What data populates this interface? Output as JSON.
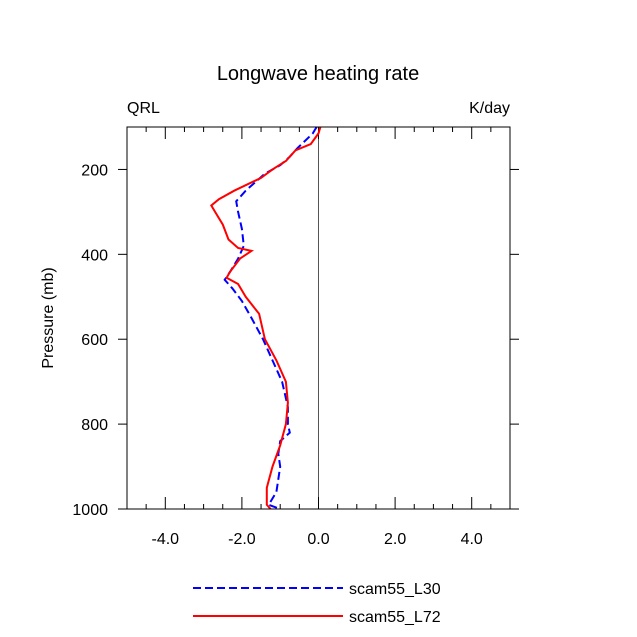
{
  "chart_data": {
    "type": "line",
    "title": "Longwave heating rate",
    "left_label": "QRL",
    "right_label": "K/day",
    "xlabel": "",
    "ylabel": "Pressure (mb)",
    "xlim": [
      -5,
      5
    ],
    "ylim": [
      1000,
      100
    ],
    "y_inverted": true,
    "x_ticks": [
      -4,
      -2,
      0,
      2,
      4
    ],
    "x_tick_labels": [
      "-4.0",
      "-2.0",
      "0.0",
      "2.0",
      "4.0"
    ],
    "y_ticks": [
      200,
      400,
      600,
      800,
      1000
    ],
    "y_tick_labels": [
      "200",
      "400",
      "600",
      "800",
      "1000"
    ],
    "legend_position": "bottom",
    "series": [
      {
        "name": "scam55_L30",
        "color": "#0000ff",
        "style": "dashed",
        "points": [
          [
            -0.05,
            100
          ],
          [
            -0.15,
            115
          ],
          [
            -0.55,
            150
          ],
          [
            -0.75,
            170
          ],
          [
            -1.0,
            190
          ],
          [
            -1.4,
            210
          ],
          [
            -1.9,
            250
          ],
          [
            -2.15,
            275
          ],
          [
            -2.1,
            300
          ],
          [
            -2.0,
            340
          ],
          [
            -1.95,
            380
          ],
          [
            -2.1,
            410
          ],
          [
            -2.3,
            440
          ],
          [
            -2.45,
            460
          ],
          [
            -2.25,
            480
          ],
          [
            -2.0,
            510
          ],
          [
            -1.75,
            550
          ],
          [
            -1.45,
            600
          ],
          [
            -1.2,
            650
          ],
          [
            -0.95,
            700
          ],
          [
            -0.8,
            760
          ],
          [
            -0.8,
            800
          ],
          [
            -0.75,
            820
          ],
          [
            -1.0,
            840
          ],
          [
            -1.05,
            870
          ],
          [
            -1.0,
            900
          ],
          [
            -1.05,
            930
          ],
          [
            -1.1,
            960
          ],
          [
            -1.3,
            990
          ],
          [
            -1.0,
            1000
          ]
        ]
      },
      {
        "name": "scam55_L72",
        "color": "#ff0000",
        "style": "solid",
        "points": [
          [
            0.05,
            100
          ],
          [
            0.0,
            115
          ],
          [
            -0.2,
            140
          ],
          [
            -0.6,
            155
          ],
          [
            -0.85,
            180
          ],
          [
            -1.2,
            200
          ],
          [
            -1.5,
            220
          ],
          [
            -2.2,
            250
          ],
          [
            -2.6,
            270
          ],
          [
            -2.8,
            285
          ],
          [
            -2.7,
            300
          ],
          [
            -2.5,
            330
          ],
          [
            -2.35,
            365
          ],
          [
            -2.1,
            385
          ],
          [
            -1.75,
            392
          ],
          [
            -2.05,
            410
          ],
          [
            -2.3,
            440
          ],
          [
            -2.4,
            455
          ],
          [
            -2.1,
            470
          ],
          [
            -1.9,
            500
          ],
          [
            -1.55,
            540
          ],
          [
            -1.4,
            600
          ],
          [
            -1.1,
            650
          ],
          [
            -0.85,
            700
          ],
          [
            -0.8,
            750
          ],
          [
            -0.85,
            800
          ],
          [
            -1.0,
            850
          ],
          [
            -1.2,
            900
          ],
          [
            -1.35,
            950
          ],
          [
            -1.35,
            990
          ],
          [
            -1.25,
            1000
          ]
        ]
      }
    ]
  }
}
